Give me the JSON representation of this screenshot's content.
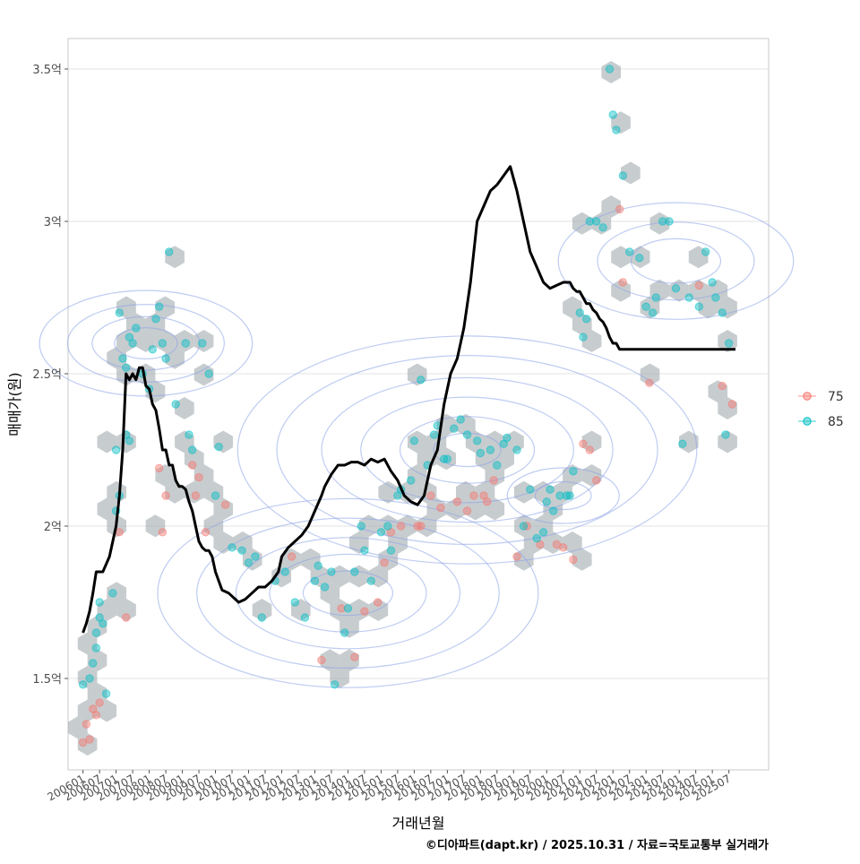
{
  "chart_data": {
    "type": "scatter",
    "xlabel": "거래년월",
    "ylabel": "매매가(원)",
    "caption": "©디아파트(dapt.kr) / 2025.10.31 / 자료=국토교통부 실거래가",
    "y_unit": "억",
    "ylim": [
      1.2,
      3.6
    ],
    "y_ticks": [
      1.5,
      2.0,
      2.5,
      3.0,
      3.5
    ],
    "y_tick_labels": [
      "1.5억",
      "2억",
      "2.5억",
      "3억",
      "3.5억"
    ],
    "x_range_years": [
      2005.55,
      2026.7
    ],
    "x_tick_labels": [
      "200601",
      "200607",
      "200701",
      "200707",
      "200801",
      "200807",
      "200901",
      "200907",
      "201001",
      "201007",
      "201101",
      "201107",
      "201201",
      "201207",
      "201301",
      "201307",
      "201401",
      "201407",
      "201501",
      "201507",
      "201601",
      "201607",
      "201701",
      "201707",
      "201801",
      "201807",
      "201901",
      "201907",
      "202001",
      "202007",
      "202101",
      "202107",
      "202201",
      "202207",
      "202301",
      "202307",
      "202401",
      "202407",
      "202501",
      "202507"
    ],
    "grid": true,
    "legend": {
      "position": "right",
      "entries": [
        {
          "label": "75",
          "color": "#F8766D"
        },
        {
          "label": "85",
          "color": "#00BFC4"
        }
      ]
    },
    "layers": [
      "hexbin density",
      "2D density contours",
      "points by area",
      "moving average line"
    ],
    "hex_color": "#a9b0b6",
    "contour_color": "#8aa2e8",
    "trend_line": {
      "name": "이동평균",
      "color": "#000000",
      "x": [
        2006.0,
        2006.1,
        2006.2,
        2006.3,
        2006.4,
        2006.5,
        2006.6,
        2006.8,
        2006.9,
        2007.0,
        2007.1,
        2007.2,
        2007.3,
        2007.4,
        2007.5,
        2007.6,
        2007.7,
        2007.8,
        2007.9,
        2008.0,
        2008.1,
        2008.2,
        2008.3,
        2008.4,
        2008.5,
        2008.6,
        2008.7,
        2008.8,
        2008.9,
        2009.0,
        2009.1,
        2009.2,
        2009.3,
        2009.5,
        2009.6,
        2009.7,
        2009.8,
        2009.9,
        2010.0,
        2010.1,
        2010.2,
        2010.4,
        2010.5,
        2010.6,
        2010.7,
        2010.9,
        2011.0,
        2011.1,
        2011.3,
        2011.5,
        2011.7,
        2011.9,
        2012.0,
        2012.2,
        2012.4,
        2012.6,
        2012.8,
        2013.0,
        2013.2,
        2013.3,
        2013.5,
        2013.7,
        2013.9,
        2014.1,
        2014.3,
        2014.5,
        2014.7,
        2014.9,
        2015.1,
        2015.3,
        2015.5,
        2015.7,
        2015.9,
        2016.1,
        2016.3,
        2016.5,
        2016.7,
        2016.9,
        2017.1,
        2017.3,
        2017.5,
        2017.7,
        2017.9,
        2018.1,
        2018.3,
        2018.5,
        2018.7,
        2018.9,
        2019.1,
        2019.3,
        2019.5,
        2019.7,
        2019.9,
        2020.1,
        2020.3,
        2020.5,
        2020.7,
        2020.8,
        2020.9,
        2021.0,
        2021.1,
        2021.2,
        2021.3,
        2021.4,
        2021.5,
        2021.6,
        2021.7,
        2021.8,
        2021.9,
        2022.0,
        2022.1,
        2022.2,
        2022.3,
        2022.4,
        2022.5,
        2022.6,
        2022.7,
        2022.9,
        2023.1,
        2023.3,
        2023.5,
        2023.7,
        2023.9,
        2024.1,
        2024.3,
        2024.5,
        2024.7,
        2024.9,
        2025.1,
        2025.3,
        2025.5,
        2025.6,
        2025.7
      ],
      "y": [
        1.65,
        1.68,
        1.72,
        1.78,
        1.85,
        1.85,
        1.85,
        1.9,
        1.95,
        2.0,
        2.1,
        2.25,
        2.5,
        2.48,
        2.5,
        2.48,
        2.52,
        2.52,
        2.46,
        2.45,
        2.4,
        2.38,
        2.32,
        2.25,
        2.25,
        2.2,
        2.2,
        2.15,
        2.13,
        2.13,
        2.12,
        2.08,
        2.05,
        1.95,
        1.93,
        1.92,
        1.92,
        1.9,
        1.85,
        1.82,
        1.79,
        1.78,
        1.77,
        1.76,
        1.75,
        1.76,
        1.77,
        1.78,
        1.8,
        1.8,
        1.82,
        1.85,
        1.9,
        1.93,
        1.95,
        1.97,
        2.0,
        2.05,
        2.1,
        2.13,
        2.17,
        2.2,
        2.2,
        2.21,
        2.21,
        2.2,
        2.22,
        2.21,
        2.22,
        2.18,
        2.15,
        2.1,
        2.08,
        2.07,
        2.1,
        2.2,
        2.25,
        2.4,
        2.5,
        2.55,
        2.65,
        2.8,
        3.0,
        3.05,
        3.1,
        3.12,
        3.15,
        3.18,
        3.1,
        3.0,
        2.9,
        2.85,
        2.8,
        2.78,
        2.79,
        2.8,
        2.8,
        2.78,
        2.77,
        2.77,
        2.75,
        2.73,
        2.73,
        2.71,
        2.7,
        2.68,
        2.67,
        2.65,
        2.62,
        2.6,
        2.6,
        2.58,
        2.58,
        2.58,
        2.58,
        2.58,
        2.58,
        2.58,
        2.58,
        2.58,
        2.58,
        2.58,
        2.58,
        2.58,
        2.58,
        2.58,
        2.58,
        2.58,
        2.58,
        2.58,
        2.58,
        2.58,
        2.58
      ]
    },
    "series": [
      {
        "name": "75",
        "color": "#F8766D",
        "points": [
          [
            2006.0,
            1.29
          ],
          [
            2006.1,
            1.35
          ],
          [
            2006.2,
            1.3
          ],
          [
            2006.3,
            1.4
          ],
          [
            2006.4,
            1.38
          ],
          [
            2006.5,
            1.42
          ],
          [
            2007.1,
            1.98
          ],
          [
            2007.3,
            1.7
          ],
          [
            2008.3,
            2.19
          ],
          [
            2008.4,
            1.98
          ],
          [
            2008.5,
            2.1
          ],
          [
            2009.3,
            2.2
          ],
          [
            2009.4,
            2.1
          ],
          [
            2009.5,
            2.16
          ],
          [
            2009.7,
            1.98
          ],
          [
            2010.3,
            2.07
          ],
          [
            2012.3,
            1.9
          ],
          [
            2013.2,
            1.56
          ],
          [
            2013.8,
            1.73
          ],
          [
            2014.2,
            1.57
          ],
          [
            2014.5,
            1.72
          ],
          [
            2014.9,
            1.75
          ],
          [
            2015.1,
            1.88
          ],
          [
            2015.3,
            1.98
          ],
          [
            2015.6,
            2.0
          ],
          [
            2016.1,
            2.0
          ],
          [
            2016.2,
            2.0
          ],
          [
            2016.5,
            2.1
          ],
          [
            2016.8,
            2.06
          ],
          [
            2017.3,
            2.08
          ],
          [
            2017.6,
            2.05
          ],
          [
            2017.8,
            2.1
          ],
          [
            2018.1,
            2.1
          ],
          [
            2018.2,
            2.08
          ],
          [
            2018.4,
            2.15
          ],
          [
            2019.1,
            1.9
          ],
          [
            2019.4,
            2.0
          ],
          [
            2019.8,
            1.94
          ],
          [
            2020.3,
            1.94
          ],
          [
            2020.5,
            1.93
          ],
          [
            2020.8,
            1.89
          ],
          [
            2021.1,
            2.27
          ],
          [
            2021.3,
            2.25
          ],
          [
            2021.5,
            2.15
          ],
          [
            2022.2,
            3.04
          ],
          [
            2022.3,
            2.8
          ],
          [
            2023.1,
            2.47
          ],
          [
            2024.6,
            2.79
          ],
          [
            2025.3,
            2.46
          ],
          [
            2025.6,
            2.4
          ]
        ]
      },
      {
        "name": "85",
        "color": "#00BFC4",
        "points": [
          [
            2006.0,
            1.48
          ],
          [
            2006.2,
            1.5
          ],
          [
            2006.3,
            1.55
          ],
          [
            2006.4,
            1.6
          ],
          [
            2006.4,
            1.65
          ],
          [
            2006.5,
            1.7
          ],
          [
            2006.5,
            1.75
          ],
          [
            2006.6,
            1.68
          ],
          [
            2006.7,
            1.45
          ],
          [
            2006.9,
            1.78
          ],
          [
            2007.0,
            2.05
          ],
          [
            2007.1,
            2.1
          ],
          [
            2007.3,
            2.3
          ],
          [
            2007.4,
            2.28
          ],
          [
            2007.0,
            2.25
          ],
          [
            2007.1,
            2.7
          ],
          [
            2007.2,
            2.55
          ],
          [
            2007.3,
            2.52
          ],
          [
            2007.4,
            2.62
          ],
          [
            2007.5,
            2.6
          ],
          [
            2007.6,
            2.65
          ],
          [
            2007.8,
            2.5
          ],
          [
            2008.0,
            2.45
          ],
          [
            2008.1,
            2.58
          ],
          [
            2008.2,
            2.68
          ],
          [
            2008.3,
            2.72
          ],
          [
            2008.4,
            2.6
          ],
          [
            2008.5,
            2.55
          ],
          [
            2008.6,
            2.9
          ],
          [
            2008.8,
            2.4
          ],
          [
            2009.1,
            2.6
          ],
          [
            2009.2,
            2.3
          ],
          [
            2009.3,
            2.25
          ],
          [
            2009.6,
            2.6
          ],
          [
            2009.8,
            2.5
          ],
          [
            2010.0,
            2.1
          ],
          [
            2010.1,
            2.26
          ],
          [
            2010.5,
            1.93
          ],
          [
            2010.8,
            1.92
          ],
          [
            2011.0,
            1.88
          ],
          [
            2011.2,
            1.9
          ],
          [
            2011.4,
            1.7
          ],
          [
            2011.8,
            1.82
          ],
          [
            2012.1,
            1.85
          ],
          [
            2012.4,
            1.75
          ],
          [
            2012.7,
            1.7
          ],
          [
            2013.0,
            1.82
          ],
          [
            2013.1,
            1.87
          ],
          [
            2013.3,
            1.8
          ],
          [
            2013.5,
            1.85
          ],
          [
            2013.6,
            1.48
          ],
          [
            2013.9,
            1.65
          ],
          [
            2014.0,
            1.73
          ],
          [
            2014.2,
            1.85
          ],
          [
            2014.4,
            2.0
          ],
          [
            2014.5,
            1.92
          ],
          [
            2014.7,
            1.82
          ],
          [
            2015.0,
            1.98
          ],
          [
            2015.2,
            2.0
          ],
          [
            2015.3,
            1.92
          ],
          [
            2015.5,
            2.1
          ],
          [
            2015.6,
            2.12
          ],
          [
            2015.9,
            2.15
          ],
          [
            2016.0,
            2.28
          ],
          [
            2016.2,
            2.48
          ],
          [
            2016.4,
            2.2
          ],
          [
            2016.6,
            2.3
          ],
          [
            2016.7,
            2.33
          ],
          [
            2016.9,
            2.22
          ],
          [
            2017.0,
            2.22
          ],
          [
            2017.2,
            2.32
          ],
          [
            2017.4,
            2.35
          ],
          [
            2017.6,
            2.3
          ],
          [
            2017.9,
            2.28
          ],
          [
            2018.0,
            2.24
          ],
          [
            2018.3,
            2.25
          ],
          [
            2018.5,
            2.2
          ],
          [
            2018.7,
            2.27
          ],
          [
            2018.8,
            2.29
          ],
          [
            2019.1,
            2.25
          ],
          [
            2019.3,
            2.0
          ],
          [
            2019.5,
            2.12
          ],
          [
            2019.7,
            1.96
          ],
          [
            2019.9,
            1.98
          ],
          [
            2020.0,
            2.08
          ],
          [
            2020.1,
            2.12
          ],
          [
            2020.2,
            2.05
          ],
          [
            2020.4,
            2.1
          ],
          [
            2020.6,
            2.1
          ],
          [
            2020.7,
            2.1
          ],
          [
            2020.8,
            2.18
          ],
          [
            2021.0,
            2.7
          ],
          [
            2021.1,
            2.62
          ],
          [
            2021.2,
            2.68
          ],
          [
            2021.3,
            3.0
          ],
          [
            2021.5,
            3.0
          ],
          [
            2021.7,
            2.98
          ],
          [
            2021.9,
            3.5
          ],
          [
            2022.0,
            3.35
          ],
          [
            2022.1,
            3.3
          ],
          [
            2022.3,
            3.15
          ],
          [
            2022.5,
            2.9
          ],
          [
            2022.8,
            2.88
          ],
          [
            2023.0,
            2.72
          ],
          [
            2023.2,
            2.7
          ],
          [
            2023.3,
            2.75
          ],
          [
            2023.5,
            3.0
          ],
          [
            2023.7,
            3.0
          ],
          [
            2023.9,
            2.78
          ],
          [
            2024.1,
            2.27
          ],
          [
            2024.3,
            2.75
          ],
          [
            2024.6,
            2.72
          ],
          [
            2024.8,
            2.9
          ],
          [
            2025.0,
            2.8
          ],
          [
            2025.1,
            2.75
          ],
          [
            2025.3,
            2.7
          ],
          [
            2025.5,
            2.6
          ],
          [
            2025.4,
            2.3
          ]
        ]
      }
    ]
  }
}
